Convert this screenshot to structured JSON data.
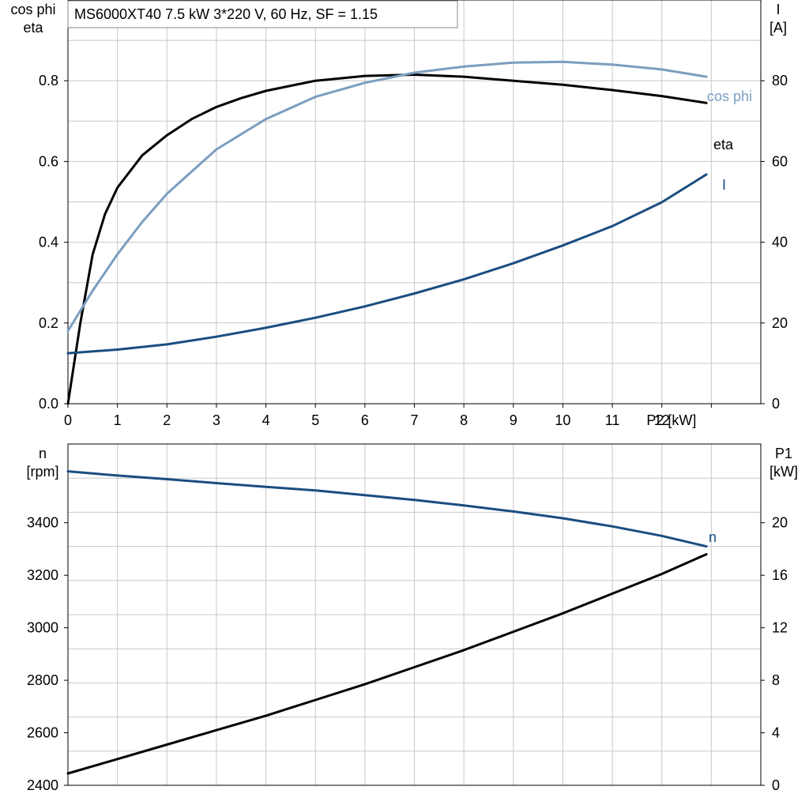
{
  "header": "MS6000XT40   7.5 kW   3*220 V, 60 Hz, SF = 1.15",
  "colors": {
    "eta": "#000000",
    "cos_phi": "#7b9ec0",
    "current": "#1b4d80",
    "speed": "#1b4d80",
    "p1": "#000000",
    "grid": "#c8c8c8"
  },
  "chart_data": [
    {
      "type": "line",
      "xlabel": "P2 [kW]",
      "ylabel_left": [
        "cos phi",
        "eta"
      ],
      "ylabel_right": [
        "I",
        "[A]"
      ],
      "xlim": [
        0,
        14
      ],
      "ylim_left": [
        0,
        1.0
      ],
      "ylim_right": [
        0,
        100
      ],
      "x_ticks": [
        "0",
        "1",
        "2",
        "3",
        "4",
        "5",
        "6",
        "7",
        "8",
        "9",
        "10",
        "11",
        "12",
        "P2 [kW]"
      ],
      "y_left_ticks": [
        "0.0",
        "0.2",
        "0.4",
        "0.6",
        "0.8"
      ],
      "y_right_ticks": [
        "0",
        "20",
        "40",
        "60",
        "80"
      ],
      "grid": true,
      "series": [
        {
          "name": "eta",
          "axis": "left",
          "x": [
            0,
            0.25,
            0.5,
            0.75,
            1.0,
            1.5,
            2.0,
            2.5,
            3.0,
            3.5,
            4.0,
            5.0,
            6.0,
            7.0,
            8.0,
            9.0,
            10.0,
            11.0,
            12.0,
            12.9
          ],
          "y": [
            0.0,
            0.2,
            0.37,
            0.47,
            0.535,
            0.615,
            0.665,
            0.705,
            0.735,
            0.757,
            0.775,
            0.8,
            0.812,
            0.815,
            0.81,
            0.8,
            0.79,
            0.777,
            0.762,
            0.745
          ]
        },
        {
          "name": "cos phi",
          "axis": "left",
          "x": [
            0,
            0.5,
            1.0,
            1.5,
            2.0,
            3.0,
            4.0,
            5.0,
            6.0,
            7.0,
            8.0,
            9.0,
            10.0,
            11.0,
            12.0,
            12.9
          ],
          "y": [
            0.18,
            0.28,
            0.37,
            0.45,
            0.52,
            0.63,
            0.705,
            0.76,
            0.795,
            0.82,
            0.835,
            0.845,
            0.847,
            0.84,
            0.828,
            0.81
          ]
        },
        {
          "name": "I",
          "axis": "right",
          "x": [
            0,
            1,
            2,
            3,
            4,
            5,
            6,
            7,
            8,
            9,
            10,
            11,
            12,
            12.9
          ],
          "y": [
            12.5,
            13.4,
            14.7,
            16.6,
            18.8,
            21.3,
            24.1,
            27.3,
            30.8,
            34.8,
            39.2,
            44.0,
            49.9,
            56.8
          ]
        }
      ]
    },
    {
      "type": "line",
      "xlim": [
        0,
        14
      ],
      "ylabel_left": [
        "n",
        "[rpm]"
      ],
      "ylabel_right": [
        "P1",
        "[kW]"
      ],
      "ylim_left": [
        2400,
        3700
      ],
      "ylim_right": [
        0,
        26
      ],
      "y_left_ticks": [
        "2400",
        "2600",
        "2800",
        "3000",
        "3200",
        "3400"
      ],
      "y_right_ticks": [
        "0",
        "4",
        "8",
        "12",
        "16",
        "20"
      ],
      "grid": true,
      "series": [
        {
          "name": "n",
          "axis": "left",
          "x": [
            0,
            1,
            2,
            3,
            4,
            5,
            6,
            7,
            8,
            9,
            10,
            11,
            12,
            12.9
          ],
          "y": [
            3596,
            3580,
            3566,
            3551,
            3537,
            3523,
            3505,
            3487,
            3466,
            3443,
            3417,
            3386,
            3350,
            3310
          ]
        },
        {
          "name": "P1",
          "axis": "right",
          "x": [
            0,
            1,
            2,
            3,
            4,
            5,
            6,
            7,
            8,
            9,
            10,
            11,
            12,
            12.9
          ],
          "y": [
            0.9,
            2.0,
            3.1,
            4.2,
            5.3,
            6.5,
            7.7,
            9.0,
            10.3,
            11.7,
            13.1,
            14.6,
            16.1,
            17.6
          ]
        }
      ]
    }
  ]
}
